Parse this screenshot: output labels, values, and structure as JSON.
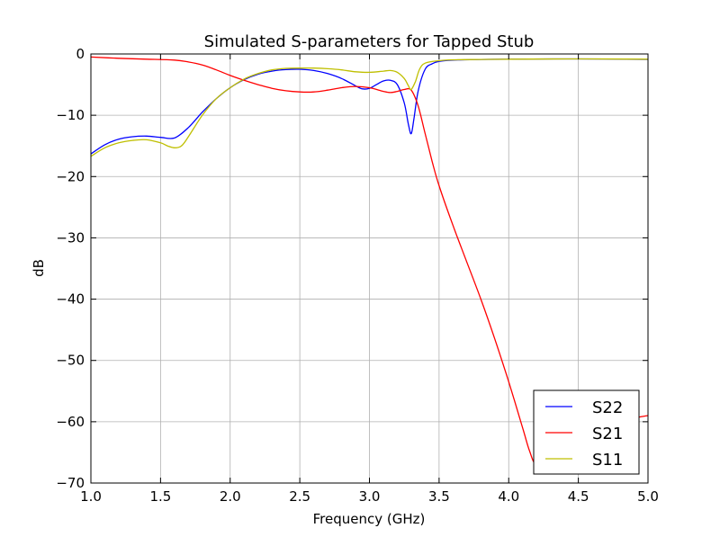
{
  "chart_data": {
    "type": "line",
    "title": "Simulated S-parameters for Tapped Stub",
    "xlabel": "Frequency (GHz)",
    "ylabel": "dB",
    "xlim": [
      1.0,
      5.0
    ],
    "ylim": [
      -70,
      0
    ],
    "xticks": [
      "1.0",
      "1.5",
      "2.0",
      "2.5",
      "3.0",
      "3.5",
      "4.0",
      "4.5",
      "5.0"
    ],
    "yticks": [
      "0",
      "−10",
      "−20",
      "−30",
      "−40",
      "−50",
      "−60",
      "−70"
    ],
    "grid": true,
    "legend_position": "bottom-right",
    "series": [
      {
        "name": "S22",
        "color": "#0000ff",
        "x": [
          1.0,
          1.1,
          1.2,
          1.3,
          1.4,
          1.5,
          1.6,
          1.7,
          1.8,
          1.9,
          2.0,
          2.1,
          2.2,
          2.3,
          2.4,
          2.5,
          2.6,
          2.7,
          2.8,
          2.9,
          2.95,
          3.0,
          3.05,
          3.1,
          3.15,
          3.2,
          3.25,
          3.28,
          3.3,
          3.32,
          3.35,
          3.4,
          3.45,
          3.5,
          3.6,
          3.8,
          4.0,
          4.5,
          5.0
        ],
        "values": [
          -16.3,
          -14.8,
          -13.9,
          -13.5,
          -13.4,
          -13.6,
          -13.7,
          -12.0,
          -9.5,
          -7.3,
          -5.5,
          -4.2,
          -3.3,
          -2.8,
          -2.55,
          -2.5,
          -2.7,
          -3.2,
          -4.0,
          -5.2,
          -5.7,
          -5.6,
          -5.0,
          -4.4,
          -4.3,
          -5.0,
          -8.0,
          -11.5,
          -13.0,
          -10.5,
          -6.0,
          -2.5,
          -1.6,
          -1.2,
          -1.0,
          -0.9,
          -0.85,
          -0.8,
          -0.9
        ]
      },
      {
        "name": "S21",
        "color": "#ff0000",
        "x": [
          1.0,
          1.2,
          1.4,
          1.6,
          1.7,
          1.8,
          1.9,
          2.0,
          2.1,
          2.2,
          2.3,
          2.4,
          2.5,
          2.6,
          2.7,
          2.8,
          2.9,
          3.0,
          3.1,
          3.15,
          3.2,
          3.25,
          3.3,
          3.35,
          3.4,
          3.45,
          3.5,
          3.6,
          3.7,
          3.8,
          3.9,
          4.0,
          4.1,
          4.15,
          4.2,
          4.3,
          4.4,
          4.5,
          4.6,
          4.7,
          4.8,
          4.9,
          5.0
        ],
        "values": [
          -0.5,
          -0.7,
          -0.85,
          -1.0,
          -1.3,
          -1.8,
          -2.6,
          -3.5,
          -4.3,
          -5.0,
          -5.6,
          -6.0,
          -6.2,
          -6.2,
          -5.9,
          -5.5,
          -5.3,
          -5.5,
          -6.1,
          -6.3,
          -6.1,
          -5.8,
          -5.9,
          -8.5,
          -13.0,
          -17.5,
          -21.5,
          -28.0,
          -34.0,
          -40.0,
          -46.5,
          -53.5,
          -61.0,
          -64.8,
          -67.0,
          -66.0,
          -64.5,
          -63.0,
          -61.8,
          -60.8,
          -60.0,
          -59.4,
          -59.0
        ]
      },
      {
        "name": "S11",
        "color": "#bfbf00",
        "x": [
          1.0,
          1.1,
          1.2,
          1.3,
          1.4,
          1.5,
          1.55,
          1.6,
          1.65,
          1.7,
          1.8,
          1.9,
          2.0,
          2.1,
          2.2,
          2.3,
          2.4,
          2.5,
          2.6,
          2.7,
          2.8,
          2.9,
          3.0,
          3.1,
          3.15,
          3.2,
          3.25,
          3.28,
          3.3,
          3.33,
          3.36,
          3.4,
          3.5,
          3.6,
          3.8,
          4.0,
          4.5,
          5.0
        ],
        "values": [
          -16.7,
          -15.3,
          -14.5,
          -14.1,
          -14.0,
          -14.5,
          -15.0,
          -15.3,
          -15.0,
          -13.5,
          -10.0,
          -7.3,
          -5.5,
          -4.1,
          -3.2,
          -2.6,
          -2.35,
          -2.3,
          -2.3,
          -2.4,
          -2.6,
          -2.9,
          -3.0,
          -2.8,
          -2.7,
          -3.0,
          -4.0,
          -5.2,
          -5.8,
          -4.5,
          -2.5,
          -1.5,
          -1.1,
          -0.95,
          -0.9,
          -0.85,
          -0.8,
          -0.85
        ]
      }
    ]
  }
}
